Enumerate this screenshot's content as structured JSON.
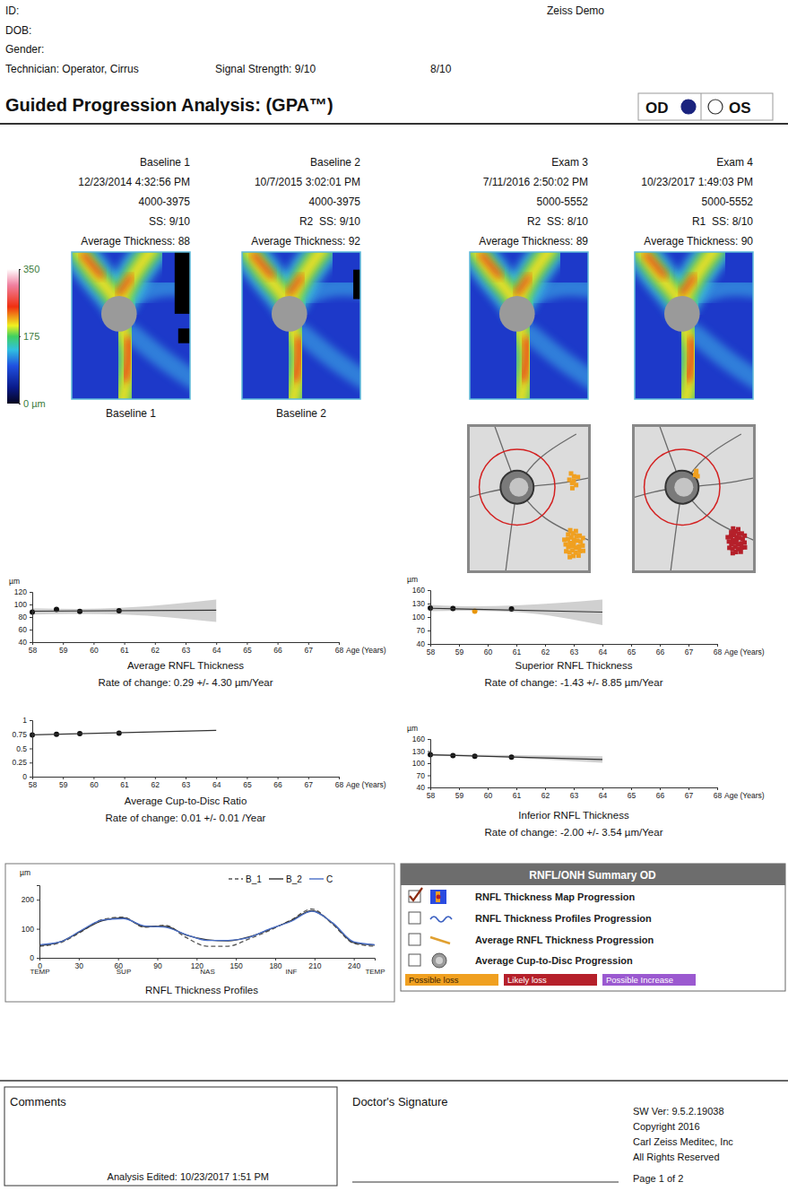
{
  "header": {
    "id": "ID:",
    "dob": "DOB:",
    "gender": "Gender:",
    "technician": "Technician: Operator, Cirrus",
    "signal_strength": "Signal Strength: 9/10",
    "signal_strength_2": "8/10",
    "site": "Zeiss Demo"
  },
  "title": "Guided Progression Analysis: (GPA™)",
  "eye": {
    "options": [
      "OD",
      "OS"
    ],
    "selected": "OD"
  },
  "exams": [
    {
      "label": "Baseline 1",
      "datetime": "12/23/2014 4:32:56 PM",
      "serial": "4000-3975",
      "ss": "SS: 9/10",
      "avg_thickness": "Average Thickness: 88",
      "map_label": "Baseline 1"
    },
    {
      "label": "Baseline 2",
      "datetime": "10/7/2015 3:02:01 PM",
      "serial": "4000-3975",
      "ss": "R2  SS: 9/10",
      "avg_thickness": "Average Thickness: 92",
      "map_label": "Baseline 2"
    },
    {
      "label": "Exam 3",
      "datetime": "7/11/2016 2:50:02 PM",
      "serial": "5000-5552",
      "ss": "R2  SS: 8/10",
      "avg_thickness": "Average Thickness: 89"
    },
    {
      "label": "Exam 4",
      "datetime": "10/23/2017 1:49:03 PM",
      "serial": "5000-5552",
      "ss": "R1  SS: 8/10",
      "avg_thickness": "Average Thickness: 90"
    }
  ],
  "color_bar": {
    "range": [
      0,
      350
    ],
    "ticks": [
      {
        "value": 0,
        "label": "0 µm"
      },
      175,
      350
    ]
  },
  "chart_data": [
    {
      "type": "line",
      "title": "Average RNFL Thickness",
      "subtitle": "Rate of change: 0.29 +/- 4.30 µm/Year",
      "y_label": "µm",
      "x_label": "Age (Years)",
      "xlim": [
        58,
        68
      ],
      "xticks": [
        58,
        59,
        60,
        61,
        62,
        63,
        64,
        65,
        66,
        67,
        68
      ],
      "ylim": [
        40,
        120
      ],
      "yticks": [
        40,
        60,
        80,
        100,
        120
      ],
      "series": [
        {
          "x": [
            58.0,
            58.79,
            59.55,
            60.83
          ],
          "values": [
            88,
            92,
            89,
            90
          ],
          "color": "#111111",
          "marker": "circle",
          "line_style": "none"
        },
        {
          "x": [
            58,
            64
          ],
          "values": [
            89.3,
            91.0
          ],
          "color": "#333333",
          "marker": "none",
          "line_style": "solid"
        }
      ],
      "confidence_band": {
        "x": [
          58,
          59.5,
          61,
          64
        ],
        "lower": [
          84,
          85,
          84,
          72
        ],
        "upper": [
          94,
          93,
          95,
          108
        ]
      }
    },
    {
      "type": "line",
      "title": "Superior RNFL Thickness",
      "subtitle": "Rate of change: -1.43 +/- 8.85 µm/Year",
      "y_label": "µm",
      "x_label": "Age (Years)",
      "xlim": [
        58,
        68
      ],
      "xticks": [
        58,
        59,
        60,
        61,
        62,
        63,
        64,
        65,
        66,
        67,
        68
      ],
      "ylim": [
        40,
        160
      ],
      "yticks": [
        40,
        70,
        100,
        130,
        160
      ],
      "series": [
        {
          "x": [
            58.0,
            58.79,
            59.55,
            60.83
          ],
          "values": [
            120,
            119,
            113,
            118
          ],
          "colors": [
            "#111111",
            "#111111",
            "#e8960c",
            "#111111"
          ],
          "marker": "circle",
          "line_style": "none"
        },
        {
          "x": [
            58,
            64
          ],
          "values": [
            119.5,
            111.0
          ],
          "color": "#333333",
          "marker": "none",
          "line_style": "solid"
        }
      ],
      "confidence_band": {
        "x": [
          58,
          59.5,
          61,
          64
        ],
        "lower": [
          113,
          114,
          111,
          82
        ],
        "upper": [
          127,
          124,
          126,
          139
        ]
      }
    },
    {
      "type": "line",
      "title": "Average Cup-to-Disc Ratio",
      "subtitle": "Rate of change: 0.01 +/- 0.01 /Year",
      "x_label": "Age (Years)",
      "xlim": [
        58,
        68
      ],
      "xticks": [
        58,
        59,
        60,
        61,
        62,
        63,
        64,
        65,
        66,
        67,
        68
      ],
      "ylim": [
        0,
        1
      ],
      "yticks": [
        0,
        0.25,
        0.5,
        0.75,
        1
      ],
      "series": [
        {
          "x": [
            58.0,
            58.79,
            59.55,
            60.83
          ],
          "values": [
            0.74,
            0.75,
            0.76,
            0.77
          ],
          "color": "#111111",
          "marker": "circle",
          "line_style": "none"
        },
        {
          "x": [
            58,
            64
          ],
          "values": [
            0.74,
            0.82
          ],
          "color": "#333333",
          "marker": "none",
          "line_style": "solid"
        }
      ]
    },
    {
      "type": "line",
      "title": "Inferior RNFL Thickness",
      "subtitle": "Rate of change: -2.00 +/- 3.54 µm/Year",
      "y_label": "µm",
      "x_label": "Age (Years)",
      "xlim": [
        58,
        68
      ],
      "xticks": [
        58,
        59,
        60,
        61,
        62,
        63,
        64,
        65,
        66,
        67,
        68
      ],
      "ylim": [
        40,
        160
      ],
      "yticks": [
        40,
        70,
        100,
        130,
        160
      ],
      "series": [
        {
          "x": [
            58.0,
            58.79,
            59.55,
            60.83
          ],
          "values": [
            121,
            119,
            117,
            115
          ],
          "color": "#111111",
          "marker": "circle",
          "line_style": "none"
        },
        {
          "x": [
            58,
            64
          ],
          "values": [
            121.0,
            109.0
          ],
          "color": "#333333",
          "marker": "none",
          "line_style": "solid"
        }
      ],
      "confidence_band": {
        "x": [
          58,
          59.5,
          61,
          64
        ],
        "lower": [
          118,
          117,
          113,
          101
        ],
        "upper": [
          124,
          121,
          120,
          117
        ]
      }
    },
    {
      "type": "line",
      "title": "RNFL Thickness Profiles",
      "y_label": "µm",
      "legend": "top",
      "xlim": [
        0,
        256
      ],
      "xticks": [
        0,
        30,
        60,
        90,
        120,
        150,
        180,
        210,
        240
      ],
      "region_ticks": [
        {
          "value": 0,
          "label": "TEMP"
        },
        {
          "value": 64,
          "label": "SUP"
        },
        {
          "value": 128,
          "label": "NAS"
        },
        {
          "value": 192,
          "label": "INF"
        },
        {
          "value": 256,
          "label": "TEMP"
        }
      ],
      "ylim": [
        0,
        250
      ],
      "yticks": [
        0,
        100,
        200
      ],
      "x": [
        0,
        16,
        32,
        48,
        64,
        80,
        96,
        112,
        128,
        144,
        160,
        176,
        192,
        208,
        224,
        240,
        256
      ],
      "series": [
        {
          "name": "B_1",
          "color": "#555555",
          "line_style": "dashed",
          "values": [
            40,
            52,
            90,
            132,
            140,
            105,
            112,
            70,
            40,
            40,
            65,
            95,
            130,
            168,
            115,
            50,
            40
          ]
        },
        {
          "name": "B_2",
          "color": "#333333",
          "line_style": "solid",
          "values": [
            42,
            55,
            92,
            128,
            138,
            108,
            108,
            78,
            62,
            58,
            72,
            98,
            128,
            162,
            118,
            52,
            44
          ]
        },
        {
          "name": "C",
          "color": "#4a6fc7",
          "line_style": "solid",
          "values": [
            45,
            55,
            95,
            130,
            135,
            110,
            105,
            80,
            60,
            60,
            70,
            100,
            125,
            160,
            120,
            55,
            45
          ]
        }
      ]
    }
  ],
  "summary": {
    "title": "RNFL/ONH Summary OD",
    "rows": [
      {
        "label": "RNFL Thickness Map Progression",
        "checked": true
      },
      {
        "label": "RNFL Thickness Profiles Progression",
        "checked": false
      },
      {
        "label": "Average RNFL Thickness Progression",
        "checked": false
      },
      {
        "label": "Average Cup-to-Disc Progression",
        "checked": false
      }
    ],
    "legend": [
      {
        "label": "Possible loss",
        "color": "#f0a020"
      },
      {
        "label": "Likely loss",
        "color": "#b5202a"
      },
      {
        "label": "Possible Increase",
        "color": "#9b59d0"
      }
    ]
  },
  "footer": {
    "comments": "Comments",
    "analysis_edited": "Analysis Edited: 10/23/2017 1:51 PM",
    "signature": "Doctor's Signature",
    "software": [
      "SW Ver: 9.5.2.19038",
      "Copyright 2016",
      "Carl Zeiss Meditec, Inc",
      "All Rights Reserved"
    ],
    "page": "Page 1 of 2"
  }
}
